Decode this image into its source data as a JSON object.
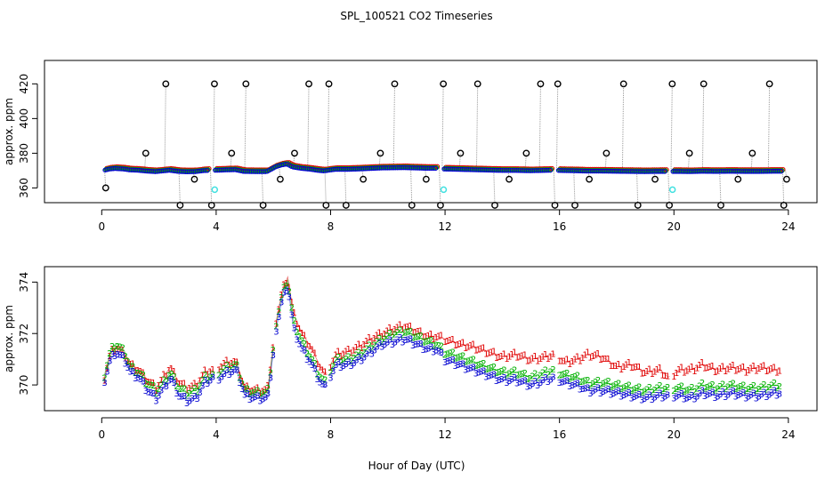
{
  "title": "SPL_100521  CO2 Timeseries",
  "xlabel": "Hour of Day (UTC)",
  "colors": {
    "black": "#000000",
    "red": "#e00000",
    "green": "#00b000",
    "blue": "#0000d0",
    "cyan": "#40e0e0",
    "grey_line": "#9a9a9a"
  },
  "chart_data": [
    {
      "type": "scatter",
      "panel": "top",
      "ylabel": "approx. ppm",
      "xlim": [
        -2.0,
        25.0
      ],
      "ylim": [
        351.5,
        433.5
      ],
      "xticks": [
        0,
        4,
        8,
        12,
        16,
        20,
        24
      ],
      "yticks": [
        360,
        380,
        400,
        420
      ],
      "calibration_hours": [
        0.1,
        1.5,
        2.2,
        2.7,
        3.2,
        3.8,
        3.9,
        4.5,
        5.0,
        5.6,
        6.2,
        6.7,
        7.2,
        7.8,
        7.9,
        8.5,
        9.1,
        9.7,
        10.2,
        10.8,
        11.3,
        11.8,
        11.9,
        12.5,
        13.1,
        13.7,
        14.2,
        14.8,
        15.3,
        15.8,
        15.9,
        16.5,
        17.0,
        17.6,
        18.2,
        18.7,
        19.3,
        19.8,
        19.9,
        20.5,
        21.0,
        21.6,
        22.2,
        22.7,
        23.3,
        23.8,
        23.9
      ],
      "calibration_levels": [
        360,
        380,
        420,
        350,
        365,
        350,
        420,
        380,
        420,
        350,
        365,
        380,
        420,
        350,
        420,
        350,
        365,
        380,
        420,
        350,
        365,
        350,
        420,
        380,
        420,
        350,
        365,
        380,
        420,
        350,
        420,
        350,
        365,
        380,
        420,
        350,
        365,
        350,
        420,
        380,
        420,
        350,
        365,
        380,
        420,
        350,
        365
      ],
      "cyan_points": [
        [
          3.95,
          359
        ],
        [
          11.95,
          359
        ],
        [
          19.95,
          359
        ]
      ],
      "series_note": "ambient CO2 near 370 ppm plotted in red, green and blue"
    },
    {
      "type": "line",
      "panel": "bottom",
      "ylabel": "approx. ppm",
      "xlim": [
        -2.0,
        25.0
      ],
      "ylim": [
        369.0,
        374.6
      ],
      "xticks": [
        0,
        4,
        8,
        12,
        16,
        20,
        24
      ],
      "yticks": [
        370,
        372,
        374
      ],
      "series": [
        {
          "name": "1",
          "marker": "1",
          "color": "red"
        },
        {
          "name": "2",
          "marker": "2",
          "color": "green"
        },
        {
          "name": "3",
          "marker": "3",
          "color": "blue"
        }
      ],
      "hours": [
        0.1,
        0.3,
        0.5,
        0.8,
        1.0,
        1.3,
        1.6,
        1.9,
        2.1,
        2.4,
        2.7,
        3.0,
        3.3,
        3.6,
        3.9,
        4.1,
        4.4,
        4.7,
        5.0,
        5.4,
        5.8,
        6.1,
        6.3,
        6.5,
        6.7,
        7.0,
        7.3,
        7.6,
        7.8,
        8.0,
        8.2,
        8.6,
        9.0,
        9.4,
        9.8,
        10.2,
        10.6,
        11.0,
        11.4,
        11.7,
        12.0,
        12.5,
        13.0,
        13.5,
        14.0,
        14.5,
        15.0,
        15.5,
        15.8,
        16.2,
        16.6,
        17.0,
        17.5,
        18.0,
        18.5,
        19.0,
        19.5,
        19.8,
        20.2,
        20.6,
        21.0,
        21.5,
        22.0,
        22.5,
        23.0,
        23.5,
        23.7
      ],
      "values_1": [
        370.3,
        371.2,
        371.5,
        371.2,
        370.8,
        370.6,
        370.2,
        369.9,
        370.2,
        370.7,
        370.1,
        369.9,
        370.0,
        370.5,
        370.6,
        370.7,
        370.9,
        370.9,
        369.9,
        369.8,
        369.8,
        372.5,
        373.6,
        374.2,
        372.8,
        372.0,
        371.5,
        370.8,
        370.4,
        370.8,
        371.2,
        371.3,
        371.5,
        371.8,
        372.0,
        372.2,
        372.3,
        372.1,
        371.9,
        371.9,
        371.8,
        371.6,
        371.5,
        371.3,
        371.1,
        371.2,
        371.0,
        371.1,
        371.2,
        370.9,
        371.0,
        371.2,
        371.1,
        370.7,
        370.8,
        370.5,
        370.6,
        370.3,
        370.6,
        370.6,
        370.8,
        370.6,
        370.7,
        370.6,
        370.7,
        370.6,
        370.6
      ],
      "values_2": [
        370.4,
        371.3,
        371.6,
        371.3,
        370.7,
        370.5,
        370.1,
        369.8,
        370.0,
        370.5,
        369.9,
        369.7,
        369.8,
        370.3,
        370.4,
        370.5,
        370.7,
        370.8,
        369.8,
        369.7,
        369.7,
        372.4,
        373.5,
        374.1,
        372.5,
        371.7,
        371.1,
        370.4,
        370.1,
        370.6,
        371.0,
        371.0,
        371.2,
        371.5,
        371.8,
        372.0,
        372.1,
        371.9,
        371.7,
        371.6,
        371.3,
        371.1,
        370.9,
        370.7,
        370.5,
        370.5,
        370.3,
        370.5,
        370.6,
        370.4,
        370.3,
        370.1,
        370.1,
        370.0,
        369.9,
        369.8,
        369.9,
        369.9,
        369.9,
        369.8,
        370.0,
        369.9,
        370.0,
        369.9,
        369.9,
        370.0,
        370.0
      ],
      "values_3": [
        370.2,
        371.0,
        371.3,
        371.0,
        370.5,
        370.3,
        369.8,
        369.5,
        369.8,
        370.3,
        369.6,
        369.4,
        369.5,
        370.1,
        370.3,
        370.3,
        370.5,
        370.6,
        369.6,
        369.5,
        369.5,
        372.2,
        373.3,
        373.9,
        372.2,
        371.4,
        370.9,
        370.2,
        369.9,
        370.4,
        370.8,
        370.8,
        371.0,
        371.3,
        371.6,
        371.7,
        371.8,
        371.6,
        371.4,
        371.4,
        371.0,
        370.8,
        370.6,
        370.4,
        370.2,
        370.2,
        370.0,
        370.2,
        370.3,
        370.1,
        370.0,
        369.8,
        369.8,
        369.7,
        369.6,
        369.5,
        369.6,
        369.6,
        369.6,
        369.5,
        369.7,
        369.6,
        369.7,
        369.6,
        369.6,
        369.7,
        369.7
      ]
    }
  ]
}
